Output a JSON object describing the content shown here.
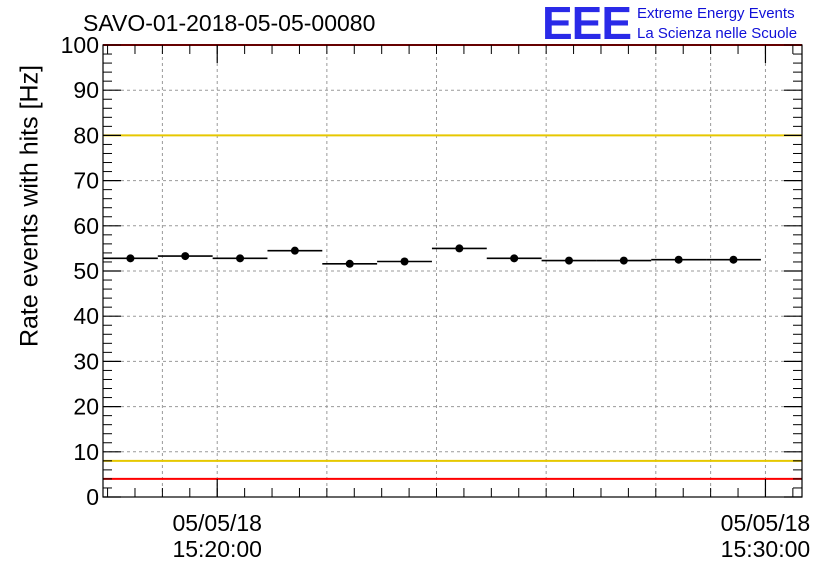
{
  "chart_data": {
    "type": "scatter",
    "title": "SAVO-01-2018-05-05-00080",
    "ylabel": "Rate events with hits [Hz]",
    "xlabel": "",
    "ylim": [
      0,
      100
    ],
    "yticks": [
      0,
      10,
      20,
      30,
      40,
      50,
      60,
      70,
      80,
      90,
      100
    ],
    "x_time_range": [
      "15:17:55",
      "15:30:40"
    ],
    "x_tick_labels": [
      {
        "time": "15:20:00",
        "date_text": "05/05/18",
        "time_text": "15:20:00"
      },
      {
        "time": "15:30:00",
        "date_text": "05/05/18",
        "time_text": "15:30:00"
      }
    ],
    "x_minor_ticks": [
      "15:19:00",
      "15:22:00",
      "15:24:00",
      "15:26:00",
      "15:28:00",
      "15:29:00"
    ],
    "grid": true,
    "bin_width_seconds": 60,
    "series": [
      {
        "marker": "circle",
        "color": "#000000",
        "points": [
          {
            "x": "15:18:25",
            "y": 52.8
          },
          {
            "x": "15:19:25",
            "y": 53.3
          },
          {
            "x": "15:20:25",
            "y": 52.8
          },
          {
            "x": "15:21:25",
            "y": 54.5
          },
          {
            "x": "15:22:25",
            "y": 51.6
          },
          {
            "x": "15:23:25",
            "y": 52.1
          },
          {
            "x": "15:24:25",
            "y": 55.0
          },
          {
            "x": "15:25:25",
            "y": 52.8
          },
          {
            "x": "15:26:25",
            "y": 52.3
          },
          {
            "x": "15:27:25",
            "y": 52.3
          },
          {
            "x": "15:28:25",
            "y": 52.5
          },
          {
            "x": "15:29:25",
            "y": 52.5
          }
        ]
      }
    ],
    "reference_lines": [
      {
        "y": 100,
        "color": "#ff0000"
      },
      {
        "y": 80,
        "color": "#e6c800"
      },
      {
        "y": 8,
        "color": "#e6c800"
      },
      {
        "y": 4,
        "color": "#ff0000"
      }
    ]
  },
  "logo": {
    "mark": "EEE",
    "line1": "Extreme Energy Events",
    "line2": "La Scienza nelle Scuole",
    "color": "#1010d8"
  }
}
